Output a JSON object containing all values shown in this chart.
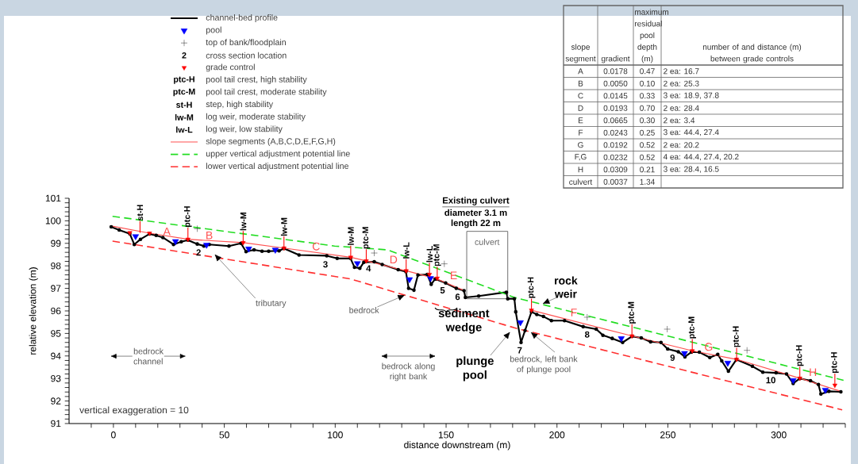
{
  "chart_data": [
    {
      "type": "line",
      "xlabel": "distance downstream (m)",
      "ylabel": "relative elevation (m)",
      "xlim": [
        -20,
        330
      ],
      "ylim": [
        91,
        101
      ],
      "xticks": [
        {
          "value": -10,
          "label": null
        },
        0,
        {
          "value": 10,
          "label": null
        },
        {
          "value": 20,
          "label": null
        },
        {
          "value": 30,
          "label": null
        },
        {
          "value": 40,
          "label": null
        },
        50,
        {
          "value": 60,
          "label": null
        },
        {
          "value": 70,
          "label": null
        },
        {
          "value": 80,
          "label": null
        },
        {
          "value": 90,
          "label": null
        },
        100,
        {
          "value": 110,
          "label": null
        },
        {
          "value": 120,
          "label": null
        },
        {
          "value": 130,
          "label": null
        },
        {
          "value": 140,
          "label": null
        },
        150,
        {
          "value": 160,
          "label": null
        },
        {
          "value": 170,
          "label": null
        },
        {
          "value": 180,
          "label": null
        },
        {
          "value": 190,
          "label": null
        },
        200,
        {
          "value": 210,
          "label": null
        },
        {
          "value": 220,
          "label": null
        },
        {
          "value": 230,
          "label": null
        },
        {
          "value": 240,
          "label": null
        },
        250,
        {
          "value": 260,
          "label": null
        },
        {
          "value": 270,
          "label": null
        },
        {
          "value": 280,
          "label": null
        },
        {
          "value": 290,
          "label": null
        },
        300,
        {
          "value": 310,
          "label": null
        },
        {
          "value": 320,
          "label": null
        },
        {
          "value": 330,
          "label": null
        }
      ],
      "yticks": [
        91,
        {
          "value": 91.2,
          "label": null
        },
        {
          "value": 91.4,
          "label": null
        },
        {
          "value": 91.6,
          "label": null
        },
        {
          "value": 91.8,
          "label": null
        },
        92,
        {
          "value": 92.2,
          "label": null
        },
        {
          "value": 92.4,
          "label": null
        },
        {
          "value": 92.6,
          "label": null
        },
        {
          "value": 92.8,
          "label": null
        },
        93,
        {
          "value": 93.2,
          "label": null
        },
        {
          "value": 93.4,
          "label": null
        },
        {
          "value": 93.6,
          "label": null
        },
        {
          "value": 93.8,
          "label": null
        },
        94,
        {
          "value": 94.2,
          "label": null
        },
        {
          "value": 94.4,
          "label": null
        },
        {
          "value": 94.6,
          "label": null
        },
        {
          "value": 94.8,
          "label": null
        },
        95,
        {
          "value": 95.2,
          "label": null
        },
        {
          "value": 95.4,
          "label": null
        },
        {
          "value": 95.6,
          "label": null
        },
        {
          "value": 95.8,
          "label": null
        },
        96,
        {
          "value": 96.2,
          "label": null
        },
        {
          "value": 96.4,
          "label": null
        },
        {
          "value": 96.6,
          "label": null
        },
        {
          "value": 96.8,
          "label": null
        },
        97,
        {
          "value": 97.2,
          "label": null
        },
        {
          "value": 97.4,
          "label": null
        },
        {
          "value": 97.6,
          "label": null
        },
        {
          "value": 97.8,
          "label": null
        },
        98,
        {
          "value": 98.2,
          "label": null
        },
        {
          "value": 98.4,
          "label": null
        },
        {
          "value": 98.6,
          "label": null
        },
        {
          "value": 98.8,
          "label": null
        },
        99,
        {
          "value": 99.2,
          "label": null
        },
        {
          "value": 99.4,
          "label": null
        },
        {
          "value": 99.6,
          "label": null
        },
        {
          "value": 99.8,
          "label": null
        },
        100,
        {
          "value": 100.2,
          "label": null
        },
        {
          "value": 100.4,
          "label": null
        },
        {
          "value": 100.6,
          "label": null
        },
        {
          "value": 100.8,
          "label": null
        },
        101
      ],
      "legend": "top",
      "series": [
        {
          "name": "channel-bed profile",
          "type": "line",
          "color": "#000000",
          "marker": "circle",
          "x": [
            -1.0,
            2.6,
            7.4,
            9.4,
            12.2,
            16.3,
            19.3,
            22.3,
            27.1,
            30.6,
            33.6,
            37.8,
            40.8,
            43.2,
            52.1,
            57.5,
            59.8,
            63.4,
            67.0,
            70.0,
            74.7,
            76.9,
            83.7,
            96.2,
            100.9,
            106.9,
            108.7,
            111.1,
            112.9,
            117.6,
            121.2,
            128.4,
            131.9,
            133.1,
            135.5,
            137.3,
            141.5,
            143.3,
            145.1,
            149.8,
            154.6,
            158.1,
            158.7,
            164.7,
            177.2,
            177.8,
            180.8,
            181.4,
            183.8,
            185.6,
            188.5,
            190.9,
            193.9,
            197.5,
            203.4,
            211.8,
            217.7,
            220.7,
            224.9,
            229.6,
            233.8,
            238.0,
            242.2,
            246.9,
            249.9,
            254.7,
            257.7,
            260.6,
            264.2,
            268.9,
            272.5,
            274.3,
            277.3,
            280.9,
            288.1,
            292.8,
            298.8,
            303.5,
            306.5,
            309.5,
            314.3,
            317.9,
            319.0,
            322.6,
            328.0
          ],
          "values": [
            99.73,
            99.59,
            99.42,
            98.95,
            99.18,
            99.42,
            99.35,
            99.26,
            98.95,
            99.07,
            99.14,
            98.97,
            98.88,
            98.95,
            98.88,
            99.0,
            98.63,
            98.71,
            98.65,
            98.65,
            98.67,
            98.77,
            98.48,
            98.45,
            98.33,
            98.33,
            97.94,
            97.89,
            98.16,
            98.18,
            98.06,
            97.83,
            97.74,
            97.0,
            96.92,
            97.59,
            97.62,
            97.18,
            97.42,
            97.24,
            97.0,
            96.9,
            96.6,
            96.66,
            96.83,
            96.54,
            96.54,
            95.96,
            94.6,
            95.13,
            95.96,
            95.84,
            95.75,
            95.57,
            95.57,
            95.3,
            95.19,
            94.92,
            94.78,
            94.6,
            94.87,
            94.8,
            94.63,
            94.6,
            94.31,
            94.19,
            93.96,
            94.17,
            94.17,
            93.93,
            94.07,
            93.78,
            93.32,
            93.84,
            93.54,
            93.28,
            93.25,
            93.2,
            92.78,
            93.0,
            92.9,
            92.73,
            92.31,
            92.43,
            92.41
          ]
        },
        {
          "name": "pool",
          "type": "scatter",
          "color": "#0000ff",
          "marker": "triangle",
          "x": [
            10,
            28,
            42,
            61,
            73,
            110,
            133.5,
            143,
            183.5,
            229,
            257.5,
            277,
            306.5,
            321
          ],
          "values": [
            99.31,
            99.09,
            98.93,
            98.76,
            98.71,
            98.11,
            97.4,
            97.45,
            95.49,
            94.78,
            94.12,
            93.69,
            92.92,
            92.49
          ]
        },
        {
          "name": "top of bank/floodplain",
          "type": "scatter",
          "color": "#333333",
          "marker": "cross",
          "x": [
            37.8,
            117.6,
            149.2,
            213.6,
            249.7,
            285.7
          ],
          "values": [
            99.65,
            98.57,
            98.09,
            95.72,
            95.19,
            94.25
          ]
        },
        {
          "name": "grade control",
          "type": "scatter",
          "color": "#ff0000",
          "marker": "triangle",
          "x": [
            7.4,
            16.3,
            33.6,
            58.5,
            76.9,
            107,
            114,
            132,
            142.5,
            146,
            188.5,
            233.8,
            261,
            281,
            309.5,
            325.3
          ],
          "values": [
            99.47,
            99.45,
            99.18,
            99.03,
            98.79,
            98.38,
            98.22,
            97.78,
            97.62,
            97.45,
            96.03,
            94.89,
            94.23,
            93.85,
            93.01,
            92.7
          ]
        },
        {
          "name": "slope segments (A,B,C,D,E,F,G,H)",
          "type": "line",
          "color": "#ff5050",
          "x": [
            -1,
            16.3,
            33.6,
            58.5,
            76.9,
            107,
            114,
            132,
            145,
            158,
            170,
            188.5,
            233.8,
            261,
            281,
            309.5,
            328
          ],
          "values": [
            99.77,
            99.45,
            99.18,
            99.03,
            98.79,
            98.38,
            98.22,
            97.78,
            97.45,
            96.91,
            null,
            96.03,
            94.89,
            94.23,
            93.85,
            93.01,
            92.43
          ]
        },
        {
          "name": "upper vertical adjustment potential line",
          "type": "line",
          "color": "#22dd22",
          "line_style": "dashed",
          "x": [
            -0.4,
            99.7,
            123.6,
            180.8,
            329.2
          ],
          "values": [
            100.2,
            98.88,
            98.71,
            96.6,
            92.92
          ]
        },
        {
          "name": "lower vertical adjustment potential line",
          "type": "line",
          "color": "#ff3030",
          "line_style": "dashed",
          "x": [
            -0.4,
            106.9,
            180.8,
            328.6
          ],
          "values": [
            99.1,
            97.42,
            95.25,
            91.61
          ]
        }
      ],
      "annotations": [
        "vertical exaggeration = 10",
        {
          "text": "tributary",
          "x": 45.5,
          "y": 98.53
        },
        {
          "text": "bedrock",
          "x": 131.6,
          "y": 96.71
        },
        {
          "text": "sediment wedge",
          "x": 150,
          "y": 96.14
        },
        "plunge pool",
        {
          "text": "bedrock, left bank of plunge pool",
          "x": 188,
          "y": 95.07
        },
        {
          "text": "rock weir",
          "x": 193.3,
          "y": 96.31
        },
        "Existing culvert",
        "diameter 3.1 m",
        "length 22 m",
        "culvert",
        {
          "text": "bedrock channel",
          "x": 15.7,
          "y": 93.99
        },
        "bedrock along right bank",
        "2",
        "3",
        "4",
        "5",
        "6",
        "7",
        "8",
        "9",
        "10",
        "A",
        "B",
        "C",
        "D",
        "E",
        "F",
        "G",
        "H",
        {
          "text": "st-H",
          "x": 12,
          "y": 99.47
        },
        {
          "text": "ptc-H",
          "x": 33.6,
          "y": 99.18
        },
        {
          "text": "lw-M",
          "x": 58.5,
          "y": 99.03
        },
        {
          "text": "lw-M",
          "x": 76.9,
          "y": 98.79
        },
        {
          "text": "lw-M",
          "x": 107,
          "y": 98.38
        },
        {
          "text": "ptc-M",
          "x": 114,
          "y": 98.22
        },
        {
          "text": "lw-L",
          "x": 132,
          "y": 97.78
        },
        {
          "text": "lw-L",
          "x": 142.5,
          "y": 97.62
        },
        {
          "text": "ptc-M",
          "x": 146,
          "y": 97.45
        },
        {
          "text": "ptc-H",
          "x": 188.5,
          "y": 96.03
        },
        {
          "text": "ptc-M",
          "x": 233.8,
          "y": 94.89
        },
        {
          "text": "ptc-M",
          "x": 261,
          "y": 94.23
        },
        {
          "text": "ptc-H",
          "x": 281,
          "y": 93.85
        },
        {
          "text": "ptc-H",
          "x": 309.5,
          "y": 93.01
        },
        {
          "text": "ptc-H",
          "x": 325.3,
          "y": 92.7
        },
        "2",
        "cross section location",
        "ptc-H",
        "pool tail crest, high stability",
        "ptc-M",
        "pool tail crest, moderate stability",
        "st-H",
        "step, high stability",
        "lw-M",
        "log weir, moderate stability",
        "lw-L",
        "log weir, low stability"
      ]
    },
    {
      "type": "other",
      "categories": [
        "slope segment",
        "gradient",
        "maximum residual pool depth (m)",
        "number of and distance (m) between grade controls"
      ],
      "cell_labels": [
        [
          "A",
          "0.0178",
          "0.47",
          "2 ea: 16.7"
        ],
        [
          "B",
          "0.0050",
          "0.10",
          "2 ea: 25.3"
        ],
        [
          "C",
          "0.0145",
          "0.33",
          "3 ea: 18.9, 37.8"
        ],
        [
          "D",
          "0.0193",
          "0.70",
          "2 ea: 28.4"
        ],
        [
          "E",
          "0.0665",
          "0.30",
          "2 ea: 3.4"
        ],
        [
          "F",
          "0.0243",
          "0.25",
          "3 ea: 44.4, 27.4"
        ],
        [
          "G",
          "0.0192",
          "0.52",
          "2 ea: 20.2"
        ],
        [
          "F,G",
          "0.0232",
          "0.52",
          "4 ea: 44.4, 27.4, 20.2"
        ],
        [
          "H",
          "0.0309",
          "0.21",
          "3 ea: 28.4, 16.5"
        ],
        [
          "culvert",
          "0.0037",
          "1.34",
          null
        ]
      ]
    }
  ]
}
